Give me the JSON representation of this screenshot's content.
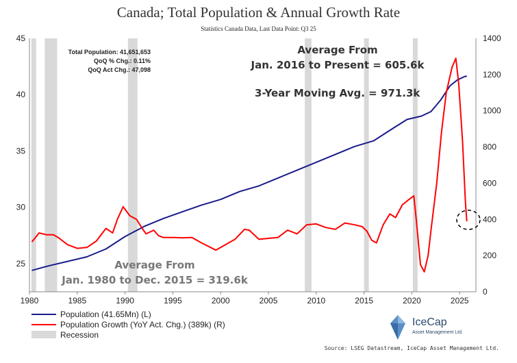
{
  "title": "Canada; Total Population & Annual Growth Rate",
  "subtitle": "Statistics Canada Data, Last Data Point: Q3 25",
  "stats": [
    "Total Population: 41,651,653",
    "QoQ % Chg.: 0.11%",
    "QoQ Act Chg.: 47,098"
  ],
  "annotations": {
    "avg_recent_line1": "Average From",
    "avg_recent_line2": "Jan. 2016 to Present = 605.6k",
    "moving_avg": "3-Year Moving Avg. = 971.3k",
    "avg_hist_line1": "Average From",
    "avg_hist_line2": "Jan. 1980 to Dec. 2015 = 319.6k"
  },
  "legend": {
    "population": "Population (41.65Mn) (L)",
    "growth": "Population Growth (YoY Act. Chg.) (389k) (R)",
    "recession": "Recession"
  },
  "logo": {
    "name": "IceCap",
    "tagline": "Asset Management Ltd."
  },
  "source": "Source: LSEG Datastream, IceCap Asset Management Ltd.",
  "colors": {
    "population": "#1a1a8c",
    "growth": "#ff0000",
    "recession": "#d9d9d9"
  },
  "chart_data": {
    "type": "line",
    "xlim": [
      1980,
      2026.7
    ],
    "x_ticks": [
      1980,
      1985,
      1990,
      1995,
      2000,
      2005,
      2010,
      2015,
      2020,
      2025
    ],
    "y_left": {
      "lim": [
        22.5,
        45
      ],
      "ticks": [
        25,
        30,
        35,
        40,
        45
      ]
    },
    "y_right": {
      "lim": [
        0,
        1400
      ],
      "ticks": [
        0,
        200,
        400,
        600,
        800,
        1000,
        1200,
        1400
      ]
    },
    "recessions": [
      [
        1980.2,
        1980.7
      ],
      [
        1981.6,
        1982.9
      ],
      [
        1990.3,
        1991.3
      ],
      [
        2008.8,
        2009.5
      ],
      [
        2015.0,
        2015.5
      ],
      [
        2020.1,
        2020.6
      ]
    ],
    "series": [
      {
        "name": "Population (41.65Mn) (L)",
        "axis": "left",
        "points": [
          [
            1980.25,
            24.4
          ],
          [
            1982,
            24.8
          ],
          [
            1984,
            25.2
          ],
          [
            1986,
            25.6
          ],
          [
            1988,
            26.3
          ],
          [
            1990,
            27.4
          ],
          [
            1992,
            28.3
          ],
          [
            1994,
            29
          ],
          [
            1996,
            29.6
          ],
          [
            1998,
            30.2
          ],
          [
            2000,
            30.7
          ],
          [
            2002,
            31.4
          ],
          [
            2004,
            31.9
          ],
          [
            2006,
            32.6
          ],
          [
            2008,
            33.3
          ],
          [
            2010,
            34
          ],
          [
            2012,
            34.7
          ],
          [
            2014,
            35.4
          ],
          [
            2016,
            35.9
          ],
          [
            2018,
            37
          ],
          [
            2019.5,
            37.8
          ],
          [
            2021,
            38.1
          ],
          [
            2022,
            38.5
          ],
          [
            2023,
            39.5
          ],
          [
            2024,
            40.8
          ],
          [
            2024.75,
            41.3
          ],
          [
            2025.5,
            41.6
          ],
          [
            2025.75,
            41.65
          ]
        ]
      },
      {
        "name": "Population Growth (YoY Act. Chg.) (389k) (R)",
        "axis": "right",
        "points": [
          [
            1980.25,
            275
          ],
          [
            1981,
            325
          ],
          [
            1981.8,
            315
          ],
          [
            1982.5,
            315
          ],
          [
            1983,
            300
          ],
          [
            1984,
            260
          ],
          [
            1985,
            240
          ],
          [
            1986,
            245
          ],
          [
            1987,
            280
          ],
          [
            1988,
            350
          ],
          [
            1988.7,
            325
          ],
          [
            1989.2,
            400
          ],
          [
            1989.8,
            470
          ],
          [
            1990.5,
            420
          ],
          [
            1991.2,
            400
          ],
          [
            1991.8,
            350
          ],
          [
            1992.2,
            320
          ],
          [
            1993,
            340
          ],
          [
            1993.5,
            310
          ],
          [
            1994,
            300
          ],
          [
            1995,
            300
          ],
          [
            1996,
            298
          ],
          [
            1997,
            300
          ],
          [
            1998,
            270
          ],
          [
            1999.5,
            230
          ],
          [
            2000.5,
            260
          ],
          [
            2001.5,
            290
          ],
          [
            2002.5,
            345
          ],
          [
            2003,
            340
          ],
          [
            2004,
            290
          ],
          [
            2005,
            295
          ],
          [
            2006,
            300
          ],
          [
            2007,
            340
          ],
          [
            2008,
            320
          ],
          [
            2009,
            370
          ],
          [
            2010,
            375
          ],
          [
            2011,
            355
          ],
          [
            2012,
            345
          ],
          [
            2013,
            380
          ],
          [
            2014,
            370
          ],
          [
            2014.8,
            360
          ],
          [
            2015.3,
            335
          ],
          [
            2015.8,
            285
          ],
          [
            2016.3,
            270
          ],
          [
            2017,
            370
          ],
          [
            2017.7,
            430
          ],
          [
            2018.3,
            410
          ],
          [
            2019,
            480
          ],
          [
            2019.7,
            510
          ],
          [
            2020.2,
            530
          ],
          [
            2020.5,
            380
          ],
          [
            2020.9,
            150
          ],
          [
            2021.3,
            110
          ],
          [
            2021.7,
            200
          ],
          [
            2022,
            340
          ],
          [
            2022.6,
            600
          ],
          [
            2023.1,
            880
          ],
          [
            2023.6,
            1100
          ],
          [
            2024.2,
            1240
          ],
          [
            2024.6,
            1290
          ],
          [
            2024.9,
            1150
          ],
          [
            2025.3,
            830
          ],
          [
            2025.6,
            500
          ],
          [
            2025.75,
            389
          ]
        ]
      }
    ]
  }
}
